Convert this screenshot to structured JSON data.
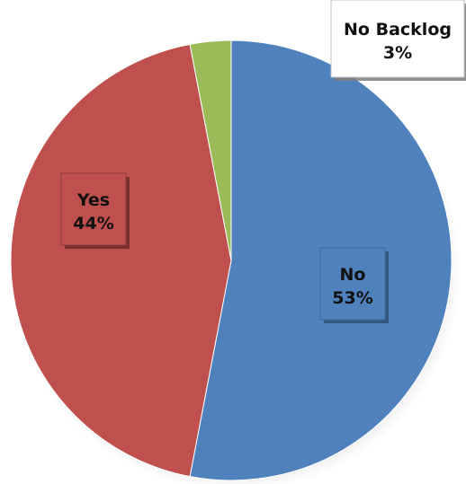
{
  "chart_data": {
    "type": "pie",
    "slices": [
      {
        "name": "No",
        "value": 53,
        "label_line1": "No",
        "label_line2": "53%",
        "color": "#4f81bd"
      },
      {
        "name": "Yes",
        "value": 44,
        "label_line1": "Yes",
        "label_line2": "44%",
        "color": "#c0504d"
      },
      {
        "name": "No Backlog",
        "value": 3,
        "label_line1": "No Backlog",
        "label_line2": "3%",
        "color": "#9bbb59"
      }
    ],
    "start_angle_deg": 0,
    "direction": "clockwise"
  }
}
